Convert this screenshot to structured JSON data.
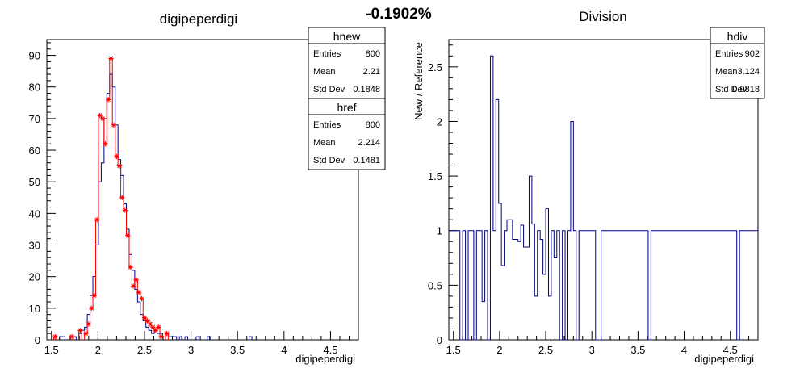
{
  "figure_title": "-0.1902%",
  "chart_data": [
    {
      "type": "histogram",
      "title": "digipeperdigi",
      "xlabel": "digipeperdigi",
      "ylabel": "",
      "xlim": [
        1.45,
        4.8
      ],
      "ylim": [
        0,
        95
      ],
      "xticks": [
        "1.5",
        "2",
        "2.5",
        "3",
        "3.5",
        "4",
        "4.5"
      ],
      "yticks": [
        "0",
        "10",
        "20",
        "30",
        "40",
        "50",
        "60",
        "70",
        "80",
        "90"
      ],
      "bin_width": 0.0302,
      "series": [
        {
          "name": "hnew",
          "color": "#000080",
          "x": [
            1.54,
            1.6,
            1.63,
            1.72,
            1.75,
            1.81,
            1.84,
            1.87,
            1.9,
            1.93,
            1.96,
            1.99,
            2.02,
            2.05,
            2.08,
            2.11,
            2.14,
            2.17,
            2.2,
            2.23,
            2.26,
            2.29,
            2.32,
            2.35,
            2.38,
            2.41,
            2.44,
            2.47,
            2.5,
            2.53,
            2.56,
            2.59,
            2.62,
            2.65,
            2.68,
            2.74,
            2.77,
            2.8,
            2.83,
            2.89,
            2.95,
            3.07,
            3.19,
            3.64
          ],
          "values": [
            1,
            1,
            1,
            1,
            1,
            2,
            3,
            4,
            8,
            14,
            20,
            30,
            50,
            56,
            70,
            78,
            84,
            80,
            68,
            57,
            52,
            43,
            35,
            27,
            22,
            16,
            12,
            8,
            6,
            4,
            3,
            2,
            3,
            2,
            2,
            2,
            1,
            1,
            1,
            1,
            1,
            1,
            1,
            1
          ]
        },
        {
          "name": "href",
          "color": "#ff0000",
          "x": [
            1.54,
            1.72,
            1.81,
            1.87,
            1.9,
            1.93,
            1.96,
            1.99,
            2.02,
            2.05,
            2.08,
            2.11,
            2.14,
            2.17,
            2.2,
            2.23,
            2.26,
            2.29,
            2.32,
            2.35,
            2.38,
            2.41,
            2.44,
            2.47,
            2.5,
            2.53,
            2.56,
            2.59,
            2.62,
            2.65,
            2.68,
            2.74
          ],
          "values": [
            1,
            1,
            3,
            2,
            5,
            10,
            14,
            38,
            71,
            70,
            62,
            76,
            89,
            68,
            58,
            55,
            45,
            41,
            33,
            23,
            17,
            19,
            15,
            13,
            7,
            6,
            5,
            4,
            3,
            4,
            1,
            2
          ]
        }
      ],
      "stats": [
        {
          "name": "hnew",
          "rows": [
            {
              "label": "Entries",
              "value": "800"
            },
            {
              "label": "Mean",
              "value": "2.21"
            },
            {
              "label": "Std Dev",
              "value": "0.1848"
            }
          ]
        },
        {
          "name": "href",
          "rows": [
            {
              "label": "Entries",
              "value": "800"
            },
            {
              "label": "Mean",
              "value": "2.214"
            },
            {
              "label": "Std Dev",
              "value": "0.1481"
            }
          ]
        }
      ]
    },
    {
      "type": "histogram",
      "title": "Division",
      "xlabel": "digipeperdigi",
      "ylabel": "New / Reference",
      "xlim": [
        1.45,
        4.8
      ],
      "ylim": [
        0,
        2.75
      ],
      "xticks": [
        "1.5",
        "2",
        "2.5",
        "3",
        "3.5",
        "4",
        "4.5"
      ],
      "yticks": [
        "0",
        "0.5",
        "1",
        "1.5",
        "2",
        "2.5"
      ],
      "series": [
        {
          "name": "hdiv",
          "color": "#000080",
          "steps": [
            [
              1.45,
              1
            ],
            [
              1.54,
              1
            ],
            [
              1.57,
              0
            ],
            [
              1.6,
              1
            ],
            [
              1.63,
              0
            ],
            [
              1.66,
              1
            ],
            [
              1.72,
              0
            ],
            [
              1.75,
              1
            ],
            [
              1.81,
              0.35
            ],
            [
              1.84,
              1
            ],
            [
              1.87,
              0
            ],
            [
              1.9,
              2.6
            ],
            [
              1.93,
              1
            ],
            [
              1.96,
              2.2
            ],
            [
              1.99,
              1.25
            ],
            [
              2.02,
              0.68
            ],
            [
              2.05,
              1
            ],
            [
              2.08,
              1.1
            ],
            [
              2.14,
              0.92
            ],
            [
              2.2,
              0.9
            ],
            [
              2.23,
              1.05
            ],
            [
              2.26,
              0.85
            ],
            [
              2.32,
              1.5
            ],
            [
              2.35,
              1.06
            ],
            [
              2.38,
              0.4
            ],
            [
              2.41,
              1
            ],
            [
              2.44,
              0.92
            ],
            [
              2.47,
              0.6
            ],
            [
              2.5,
              1.2
            ],
            [
              2.53,
              0.4
            ],
            [
              2.56,
              1
            ],
            [
              2.59,
              0.75
            ],
            [
              2.62,
              1
            ],
            [
              2.65,
              0
            ],
            [
              2.68,
              1
            ],
            [
              2.71,
              0
            ],
            [
              2.74,
              1
            ],
            [
              2.77,
              2.0
            ],
            [
              2.8,
              1
            ],
            [
              2.83,
              0
            ],
            [
              2.86,
              1
            ],
            [
              3.04,
              0
            ],
            [
              3.1,
              1
            ],
            [
              3.61,
              0
            ],
            [
              3.64,
              1
            ],
            [
              4.57,
              0
            ],
            [
              4.6,
              1
            ],
            [
              4.8,
              1
            ]
          ]
        }
      ],
      "stats": [
        {
          "name": "hdiv",
          "rows": [
            {
              "label": "Entries",
              "value": "902"
            },
            {
              "label": "Mean",
              "value": "3.124"
            },
            {
              "label": "Std Dev",
              "value": "0.9818"
            }
          ]
        }
      ]
    }
  ]
}
